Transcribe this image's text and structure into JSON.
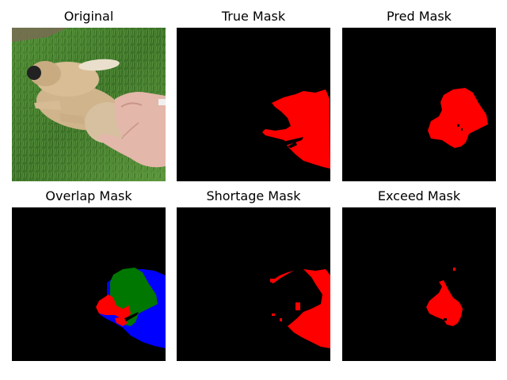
{
  "figure": {
    "panels": [
      {
        "title": "Original"
      },
      {
        "title": "True Mask"
      },
      {
        "title": "Pred Mask"
      },
      {
        "title": "Overlap Mask"
      },
      {
        "title": "Shortage Mask"
      },
      {
        "title": "Exceed Mask"
      }
    ]
  },
  "colors": {
    "background": "#000000",
    "mask": "#ff0000",
    "overlap_true_positive": "#007700",
    "overlap_false_negative": "#0000ff",
    "overlap_false_positive": "#ff0000",
    "grass": "#3f7a2a",
    "dog_fur": "#cdb28a",
    "hand_skin": "#e2b6a8"
  }
}
